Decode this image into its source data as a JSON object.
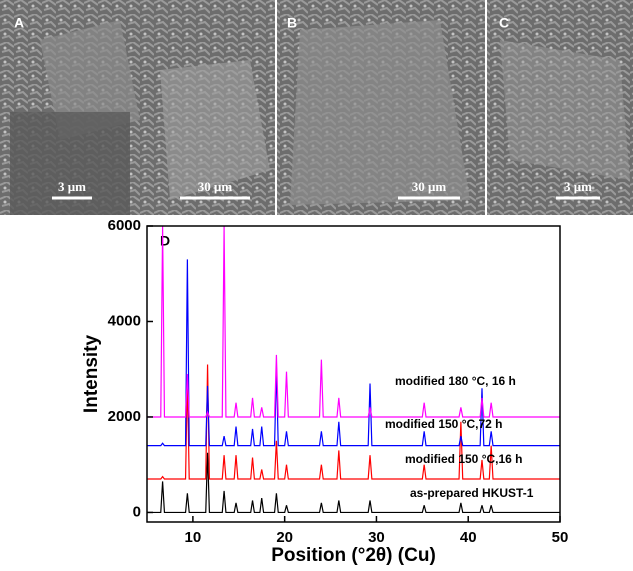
{
  "images": [
    {
      "label": "A",
      "scale_bars": [
        "3 μm",
        "30 μm"
      ]
    },
    {
      "label": "B",
      "scale_bars": [
        "30 μm"
      ]
    },
    {
      "label": "C",
      "scale_bars": [
        "3 μm"
      ]
    }
  ],
  "chart_data": {
    "type": "line",
    "panel_label": "D",
    "x_label": "Position (°2θ) (Cu)",
    "y_label": "Intensity",
    "xlim": [
      5,
      50
    ],
    "xticks": [
      10,
      20,
      30,
      40,
      50
    ],
    "ylim": [
      -200,
      6000
    ],
    "yticks": [
      0,
      2000,
      4000,
      6000
    ],
    "x": [
      5,
      6.5,
      6.7,
      6.9,
      9.2,
      9.4,
      9.6,
      11.4,
      11.6,
      11.8,
      13.2,
      13.4,
      13.6,
      14.5,
      14.7,
      14.9,
      16.3,
      16.5,
      16.7,
      17.3,
      17.5,
      17.7,
      18.9,
      19.1,
      19.3,
      20.0,
      20.2,
      20.4,
      23.8,
      24.0,
      24.2,
      25.7,
      25.9,
      26.1,
      29.1,
      29.3,
      29.5,
      35.0,
      35.2,
      35.4,
      39.0,
      39.2,
      39.4,
      41.3,
      41.5,
      41.7,
      42.3,
      42.5,
      42.7,
      50
    ],
    "series": [
      {
        "name": "as-prepared HKUST-1",
        "color": "#000000",
        "values": [
          0,
          0,
          650,
          0,
          0,
          400,
          0,
          0,
          1250,
          0,
          0,
          450,
          0,
          0,
          200,
          0,
          0,
          250,
          0,
          0,
          300,
          0,
          0,
          400,
          0,
          0,
          150,
          0,
          0,
          200,
          0,
          0,
          250,
          0,
          0,
          250,
          0,
          0,
          150,
          0,
          0,
          200,
          0,
          0,
          150,
          0,
          0,
          150,
          0,
          0
        ]
      },
      {
        "name": "modified 150 °C,16 h",
        "color": "#ff0000",
        "values": [
          700,
          700,
          750,
          700,
          700,
          2850,
          700,
          700,
          3100,
          700,
          700,
          1200,
          700,
          700,
          1200,
          700,
          700,
          1150,
          700,
          700,
          900,
          700,
          700,
          1500,
          700,
          700,
          1000,
          700,
          700,
          1000,
          700,
          700,
          1300,
          700,
          700,
          1200,
          700,
          700,
          1000,
          700,
          700,
          1900,
          700,
          700,
          1100,
          700,
          700,
          1400,
          700,
          700
        ]
      },
      {
        "name": "modified 150 °C,72 h",
        "color": "#0000ff",
        "values": [
          1400,
          1400,
          1450,
          1400,
          1400,
          5300,
          1400,
          1400,
          2650,
          1400,
          1400,
          1600,
          1400,
          1400,
          1800,
          1400,
          1400,
          1750,
          1400,
          1400,
          1800,
          1400,
          1400,
          3050,
          1400,
          1400,
          1700,
          1400,
          1400,
          1700,
          1400,
          1400,
          1900,
          1400,
          1400,
          2700,
          1400,
          1400,
          1700,
          1400,
          1400,
          1600,
          1400,
          1400,
          2600,
          1400,
          1400,
          1700,
          1400,
          1400
        ]
      },
      {
        "name": "modified 180 °C, 16 h",
        "color": "#ff00ff",
        "values": [
          2000,
          2000,
          6000,
          2000,
          2000,
          2900,
          2000,
          2000,
          2100,
          2000,
          2000,
          6000,
          2000,
          2000,
          2300,
          2000,
          2000,
          2400,
          2000,
          2000,
          2200,
          2000,
          2000,
          3300,
          2000,
          2000,
          2950,
          2000,
          2000,
          3200,
          2000,
          2000,
          2400,
          2000,
          2000,
          2200,
          2000,
          2000,
          2300,
          2000,
          2000,
          2200,
          2000,
          2000,
          2400,
          2000,
          2000,
          2300,
          2000,
          2000
        ]
      }
    ]
  }
}
